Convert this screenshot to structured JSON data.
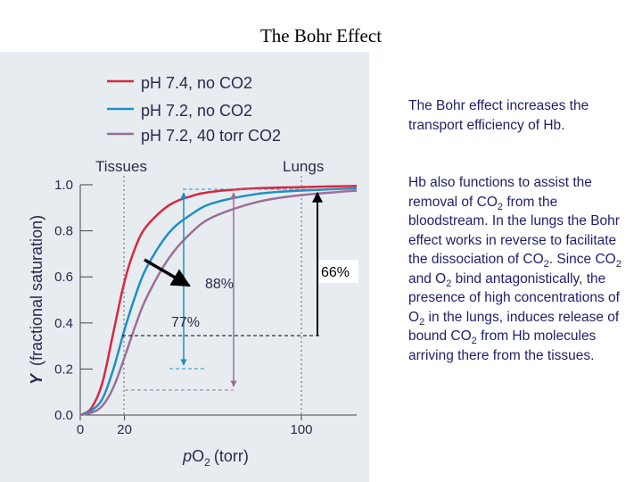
{
  "title": "The Bohr Effect",
  "colors": {
    "red": "#d8283f",
    "blue": "#1f8fc4",
    "purple": "#9b6f97",
    "text": "#1f1f6b",
    "panel": "#e7ecf1"
  },
  "side_text": {
    "p1": "The Bohr effect increases the transport efficiency of Hb.",
    "p2_parts": [
      {
        "t": "Hb also functions to assist the removal of CO"
      },
      {
        "t": "2",
        "sub": true
      },
      {
        "t": "  from the bloodstream.  In the lungs the Bohr effect works in reverse to facilitate the dissociation of CO"
      },
      {
        "t": "2",
        "sub": true
      },
      {
        "t": ".  Since CO"
      },
      {
        "t": "2",
        "sub": true
      },
      {
        "t": " and O"
      },
      {
        "t": "2",
        "sub": true
      },
      {
        "t": " bind antagonistically, the presence of high concentrations of O"
      },
      {
        "t": "2",
        "sub": true
      },
      {
        "t": " in the lungs, induces release of bound CO"
      },
      {
        "t": "2",
        "sub": true
      },
      {
        "t": " from Hb molecules arriving there from the tissues."
      }
    ]
  },
  "chart_data": {
    "type": "line",
    "xlabel": "pO2 (torr)",
    "ylabel": "Y (fractional saturation)",
    "xlim": [
      0,
      125
    ],
    "ylim": [
      0,
      1.0
    ],
    "x_ticks": [
      0,
      20,
      100
    ],
    "y_ticks": [
      "0.0",
      "0.2",
      "0.4",
      "0.6",
      "0.8",
      "1.0"
    ],
    "legend_position": "top-left",
    "series": [
      {
        "name": "pH 7.4, no CO2",
        "color": "#d8283f",
        "x": [
          0,
          5,
          10,
          15,
          20,
          25,
          30,
          40,
          50,
          60,
          80,
          100,
          125
        ],
        "y": [
          0.0,
          0.03,
          0.14,
          0.36,
          0.58,
          0.73,
          0.82,
          0.91,
          0.95,
          0.97,
          0.985,
          0.99,
          0.995
        ]
      },
      {
        "name": "pH 7.2, no CO2",
        "color": "#1f8fc4",
        "x": [
          0,
          5,
          10,
          15,
          20,
          25,
          30,
          40,
          50,
          60,
          80,
          100,
          125
        ],
        "y": [
          0.0,
          0.02,
          0.07,
          0.2,
          0.37,
          0.52,
          0.64,
          0.79,
          0.87,
          0.92,
          0.96,
          0.975,
          0.985
        ]
      },
      {
        "name": "pH 7.2, 40 torr CO2",
        "color": "#9b6f97",
        "x": [
          0,
          5,
          10,
          15,
          20,
          25,
          30,
          40,
          50,
          60,
          80,
          100,
          125
        ],
        "y": [
          0.0,
          0.01,
          0.04,
          0.12,
          0.25,
          0.39,
          0.51,
          0.68,
          0.79,
          0.86,
          0.925,
          0.955,
          0.975
        ]
      }
    ],
    "annotations": {
      "tissues": "Tissues",
      "lungs": "Lungs",
      "label_88": "88%",
      "label_77": "77%",
      "label_66": "66%"
    }
  }
}
